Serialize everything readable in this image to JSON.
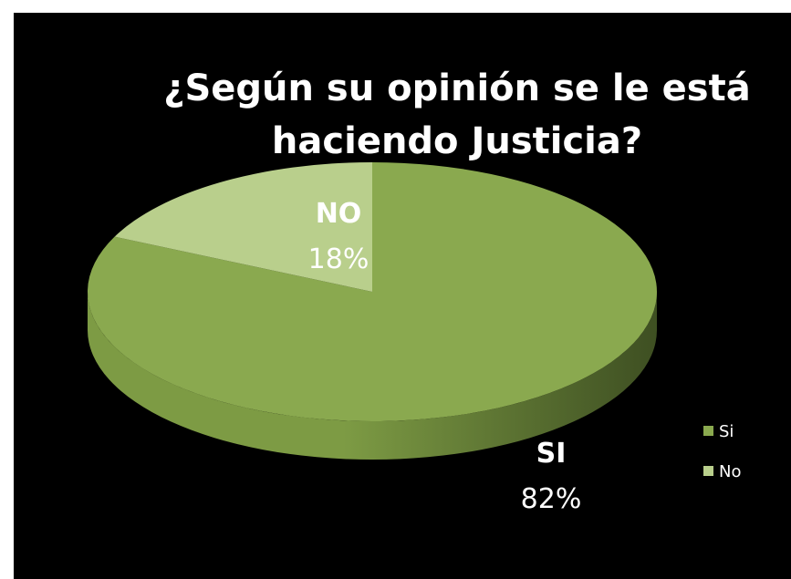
{
  "chart_data": {
    "type": "pie",
    "title_lines": [
      "¿Según su opinión se le está",
      "haciendo Justicia?"
    ],
    "slices": [
      {
        "name": "Si",
        "value": 82,
        "label": "SI",
        "percent_label": "82%",
        "color": "#8aa94f"
      },
      {
        "name": "No",
        "value": 18,
        "label": "NO",
        "percent_label": "18%",
        "color": "#b9cf8c"
      }
    ],
    "legend": {
      "placement": "right",
      "items": [
        "Si",
        "No"
      ]
    },
    "style": {
      "background": "#000000",
      "side_color_light": "#7d9b44",
      "side_color_dark": "#3e4f22"
    }
  }
}
